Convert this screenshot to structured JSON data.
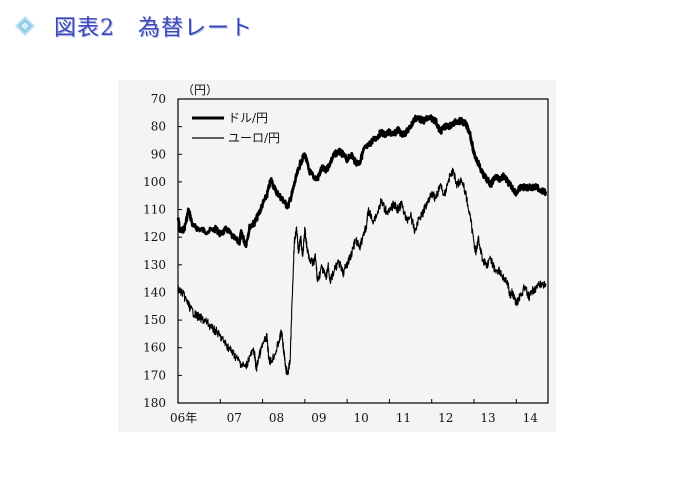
{
  "header": {
    "icon": "diamond-bullet-icon",
    "title": "図表2　為替レート"
  },
  "chart_data": {
    "type": "line",
    "unit_label": "（円）",
    "y_inverted": true,
    "ylim": [
      70,
      180
    ],
    "yticks": [
      70,
      80,
      90,
      100,
      110,
      120,
      130,
      140,
      150,
      160,
      170,
      180
    ],
    "xlim": [
      2006.0,
      2014.75
    ],
    "xticks": [
      {
        "x": 2006.0,
        "label": "06年"
      },
      {
        "x": 2007.0,
        "label": "07"
      },
      {
        "x": 2008.0,
        "label": "08"
      },
      {
        "x": 2009.0,
        "label": "09"
      },
      {
        "x": 2010.0,
        "label": "10"
      },
      {
        "x": 2011.0,
        "label": "11"
      },
      {
        "x": 2012.0,
        "label": "12"
      },
      {
        "x": 2013.0,
        "label": "13"
      },
      {
        "x": 2014.0,
        "label": "14"
      }
    ],
    "legend_position": "top-left",
    "series": [
      {
        "name": "ドル/円",
        "style": "thick",
        "points": [
          [
            2006.0,
            113
          ],
          [
            2006.05,
            118
          ],
          [
            2006.15,
            117
          ],
          [
            2006.25,
            110
          ],
          [
            2006.35,
            116
          ],
          [
            2006.5,
            117
          ],
          [
            2006.7,
            118
          ],
          [
            2006.9,
            117
          ],
          [
            2007.0,
            119
          ],
          [
            2007.15,
            117
          ],
          [
            2007.3,
            120
          ],
          [
            2007.45,
            122
          ],
          [
            2007.5,
            118
          ],
          [
            2007.6,
            123
          ],
          [
            2007.7,
            116
          ],
          [
            2007.8,
            115
          ],
          [
            2007.9,
            112
          ],
          [
            2008.0,
            108
          ],
          [
            2008.1,
            105
          ],
          [
            2008.2,
            99
          ],
          [
            2008.3,
            103
          ],
          [
            2008.4,
            105
          ],
          [
            2008.5,
            107
          ],
          [
            2008.6,
            109
          ],
          [
            2008.7,
            104
          ],
          [
            2008.8,
            98
          ],
          [
            2008.9,
            93
          ],
          [
            2009.0,
            90
          ],
          [
            2009.1,
            96
          ],
          [
            2009.2,
            98
          ],
          [
            2009.3,
            99
          ],
          [
            2009.4,
            95
          ],
          [
            2009.5,
            96
          ],
          [
            2009.6,
            93
          ],
          [
            2009.7,
            90
          ],
          [
            2009.8,
            89
          ],
          [
            2009.9,
            90
          ],
          [
            2010.0,
            92
          ],
          [
            2010.1,
            90
          ],
          [
            2010.2,
            93
          ],
          [
            2010.3,
            93
          ],
          [
            2010.4,
            88
          ],
          [
            2010.5,
            87
          ],
          [
            2010.6,
            85
          ],
          [
            2010.7,
            84
          ],
          [
            2010.8,
            82
          ],
          [
            2010.9,
            83
          ],
          [
            2011.0,
            82
          ],
          [
            2011.1,
            83
          ],
          [
            2011.2,
            81
          ],
          [
            2011.3,
            83
          ],
          [
            2011.4,
            82
          ],
          [
            2011.5,
            80
          ],
          [
            2011.6,
            77
          ],
          [
            2011.7,
            77
          ],
          [
            2011.8,
            78
          ],
          [
            2011.9,
            77
          ],
          [
            2012.0,
            77
          ],
          [
            2012.1,
            78
          ],
          [
            2012.2,
            82
          ],
          [
            2012.3,
            80
          ],
          [
            2012.4,
            80
          ],
          [
            2012.5,
            79
          ],
          [
            2012.6,
            78
          ],
          [
            2012.7,
            78
          ],
          [
            2012.8,
            79
          ],
          [
            2012.9,
            82
          ],
          [
            2013.0,
            90
          ],
          [
            2013.1,
            93
          ],
          [
            2013.2,
            97
          ],
          [
            2013.3,
            99
          ],
          [
            2013.4,
            101
          ],
          [
            2013.5,
            98
          ],
          [
            2013.6,
            99
          ],
          [
            2013.7,
            98
          ],
          [
            2013.8,
            100
          ],
          [
            2013.9,
            102
          ],
          [
            2014.0,
            104
          ],
          [
            2014.1,
            102
          ],
          [
            2014.2,
            102
          ],
          [
            2014.3,
            102
          ],
          [
            2014.4,
            102
          ],
          [
            2014.5,
            102
          ],
          [
            2014.6,
            103
          ],
          [
            2014.7,
            104
          ]
        ]
      },
      {
        "name": "ユーロ/円",
        "style": "thin",
        "points": [
          [
            2006.0,
            139
          ],
          [
            2006.1,
            140
          ],
          [
            2006.2,
            143
          ],
          [
            2006.3,
            146
          ],
          [
            2006.4,
            148
          ],
          [
            2006.5,
            149
          ],
          [
            2006.6,
            150
          ],
          [
            2006.7,
            151
          ],
          [
            2006.8,
            153
          ],
          [
            2006.9,
            154
          ],
          [
            2007.0,
            156
          ],
          [
            2007.1,
            158
          ],
          [
            2007.2,
            160
          ],
          [
            2007.3,
            162
          ],
          [
            2007.4,
            164
          ],
          [
            2007.5,
            166
          ],
          [
            2007.6,
            167
          ],
          [
            2007.7,
            163
          ],
          [
            2007.8,
            161
          ],
          [
            2007.85,
            168
          ],
          [
            2007.9,
            164
          ],
          [
            2008.0,
            159
          ],
          [
            2008.1,
            156
          ],
          [
            2008.15,
            164
          ],
          [
            2008.2,
            165
          ],
          [
            2008.3,
            162
          ],
          [
            2008.4,
            157
          ],
          [
            2008.45,
            154
          ],
          [
            2008.5,
            161
          ],
          [
            2008.55,
            168
          ],
          [
            2008.6,
            169
          ],
          [
            2008.65,
            165
          ],
          [
            2008.7,
            142
          ],
          [
            2008.75,
            122
          ],
          [
            2008.8,
            117
          ],
          [
            2008.85,
            125
          ],
          [
            2008.9,
            120
          ],
          [
            2008.95,
            127
          ],
          [
            2009.0,
            117
          ],
          [
            2009.05,
            124
          ],
          [
            2009.1,
            127
          ],
          [
            2009.2,
            130
          ],
          [
            2009.25,
            127
          ],
          [
            2009.3,
            136
          ],
          [
            2009.4,
            131
          ],
          [
            2009.5,
            135
          ],
          [
            2009.55,
            130
          ],
          [
            2009.6,
            136
          ],
          [
            2009.7,
            132
          ],
          [
            2009.8,
            129
          ],
          [
            2009.9,
            133
          ],
          [
            2010.0,
            130
          ],
          [
            2010.1,
            126
          ],
          [
            2010.2,
            121
          ],
          [
            2010.3,
            124
          ],
          [
            2010.4,
            118
          ],
          [
            2010.45,
            117
          ],
          [
            2010.5,
            110
          ],
          [
            2010.6,
            114
          ],
          [
            2010.7,
            112
          ],
          [
            2010.8,
            107
          ],
          [
            2010.9,
            110
          ],
          [
            2011.0,
            111
          ],
          [
            2011.1,
            108
          ],
          [
            2011.2,
            110
          ],
          [
            2011.3,
            108
          ],
          [
            2011.4,
            114
          ],
          [
            2011.5,
            112
          ],
          [
            2011.6,
            118
          ],
          [
            2011.7,
            113
          ],
          [
            2011.8,
            111
          ],
          [
            2011.9,
            107
          ],
          [
            2012.0,
            104
          ],
          [
            2012.1,
            106
          ],
          [
            2012.2,
            101
          ],
          [
            2012.3,
            105
          ],
          [
            2012.4,
            99
          ],
          [
            2012.5,
            96
          ],
          [
            2012.6,
            101
          ],
          [
            2012.7,
            99
          ],
          [
            2012.8,
            104
          ],
          [
            2012.9,
            112
          ],
          [
            2013.0,
            122
          ],
          [
            2013.05,
            126
          ],
          [
            2013.1,
            120
          ],
          [
            2013.2,
            128
          ],
          [
            2013.3,
            130
          ],
          [
            2013.4,
            128
          ],
          [
            2013.5,
            132
          ],
          [
            2013.6,
            132
          ],
          [
            2013.7,
            135
          ],
          [
            2013.8,
            137
          ],
          [
            2013.85,
            141
          ],
          [
            2013.9,
            140
          ],
          [
            2014.0,
            144
          ],
          [
            2014.1,
            141
          ],
          [
            2014.2,
            138
          ],
          [
            2014.3,
            142
          ],
          [
            2014.4,
            139
          ],
          [
            2014.5,
            138
          ],
          [
            2014.6,
            137
          ],
          [
            2014.7,
            137
          ]
        ]
      }
    ]
  }
}
